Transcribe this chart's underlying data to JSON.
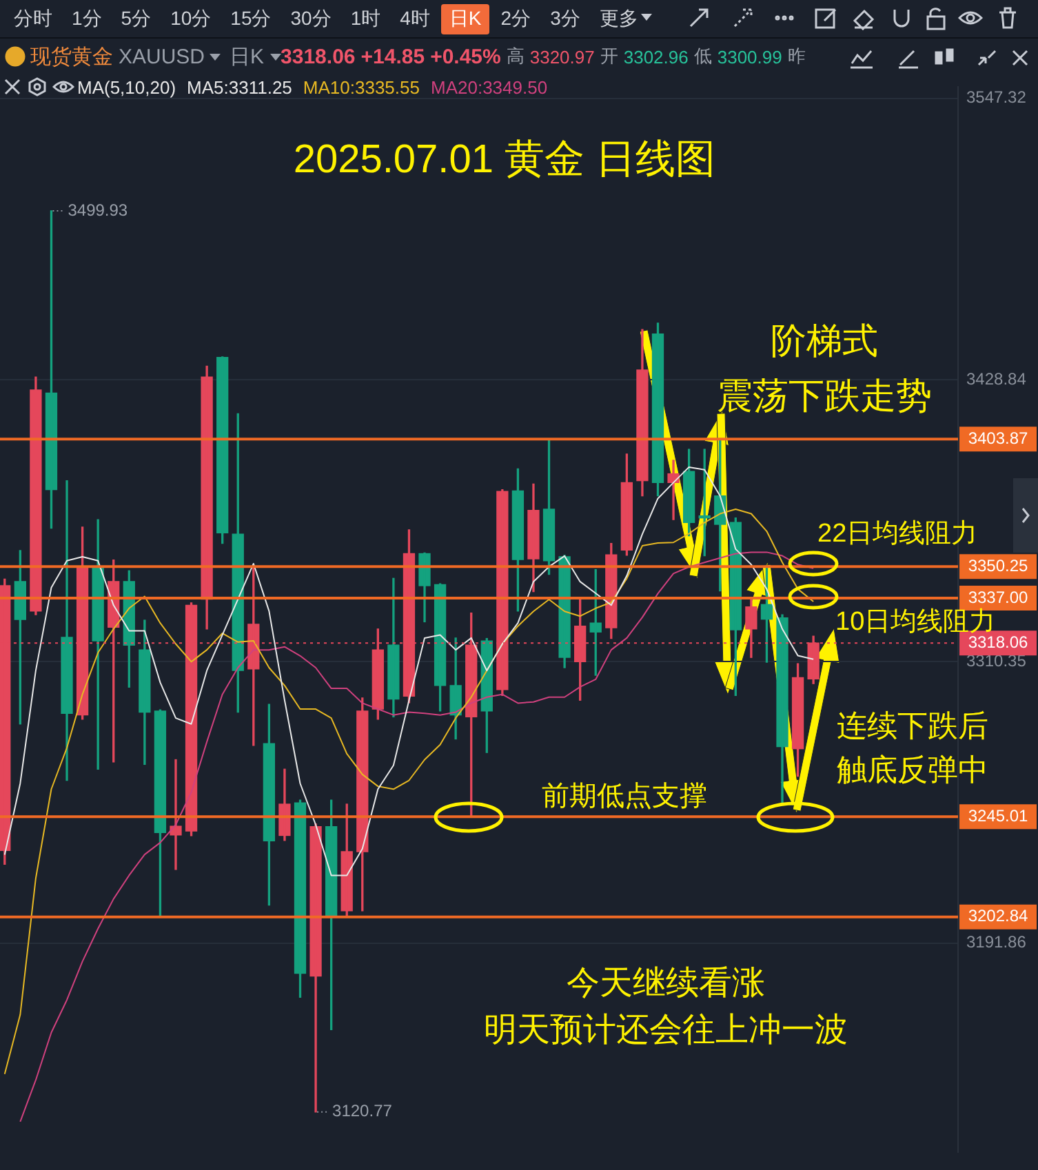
{
  "chart_data": {
    "type": "candlestick",
    "title": "2025.07.01 黄金 日线图",
    "subtitle": "现货黄金 XAUUSD 日K 3318.06 +14.85 +0.45% 高 3320.97 开 3302.96 低 3300.99 昨",
    "categories": [
      null,
      null,
      null,
      null,
      null,
      null,
      null,
      null,
      null,
      null,
      null,
      null,
      null,
      null,
      null,
      null,
      null,
      null,
      null,
      null,
      null,
      null,
      null,
      null,
      null,
      null,
      null,
      null,
      null,
      null,
      null,
      null,
      null,
      null,
      null,
      null,
      null,
      null,
      null,
      null,
      null,
      null,
      null,
      null,
      null,
      null,
      null,
      null,
      null,
      null,
      null,
      null,
      null
    ],
    "ohlc": [
      [
        3230.8,
        3345,
        3225,
        3342.2
      ],
      [
        3344,
        3357,
        3284,
        3328
      ],
      [
        3331.5,
        3430,
        3330,
        3424.6
      ],
      [
        3423.3,
        3499.93,
        3366.4,
        3382.6
      ],
      [
        3320.5,
        3386.4,
        3260.3,
        3288.5
      ],
      [
        3287.8,
        3366.9,
        3286,
        3349.7
      ],
      [
        3349.7,
        3370,
        3265,
        3319
      ],
      [
        3324.7,
        3353,
        3268,
        3344
      ],
      [
        3344,
        3348.5,
        3299.5,
        3317.2
      ],
      [
        3315.2,
        3327.7,
        3267,
        3289
      ],
      [
        3289.5,
        3290,
        3202.9,
        3238.3
      ],
      [
        3237.3,
        3269,
        3222.8,
        3241
      ],
      [
        3239,
        3335,
        3237,
        3334
      ],
      [
        3336.5,
        3434.6,
        3324,
        3430
      ],
      [
        3438.3,
        3438.5,
        3360,
        3364.4
      ],
      [
        3363.9,
        3414.6,
        3289,
        3306.5
      ],
      [
        3307.2,
        3350.2,
        3275,
        3326
      ],
      [
        3275.8,
        3292.3,
        3207.8,
        3234.8
      ],
      [
        3237.1,
        3265,
        3235,
        3250.3
      ],
      [
        3250.8,
        3252,
        3169,
        3179.1
      ],
      [
        3177.9,
        3242,
        3120.77,
        3240.8
      ],
      [
        3240.8,
        3252,
        3155.4,
        3202.9
      ],
      [
        3205.4,
        3250.3,
        3203.4,
        3230.3
      ],
      [
        3230.3,
        3295,
        3205.4,
        3289.5
      ],
      [
        3290.3,
        3324,
        3286,
        3315.2
      ],
      [
        3317.2,
        3345.3,
        3287,
        3294.5
      ],
      [
        3295.7,
        3365.7,
        3293,
        3355.7
      ],
      [
        3355.7,
        3356,
        3327,
        3342.2
      ],
      [
        3342.7,
        3343,
        3289.5,
        3300.2
      ],
      [
        3300.2,
        3320.2,
        3277.7,
        3287.8
      ],
      [
        3287,
        3330.7,
        3245.01,
        3317.2
      ],
      [
        3319,
        3320,
        3272,
        3289.5
      ],
      [
        3298.5,
        3382.6,
        3296,
        3381.9
      ],
      [
        3382.1,
        3391.4,
        3331.5,
        3353.2
      ],
      [
        3353.5,
        3385,
        3339.7,
        3373.9
      ],
      [
        3374.4,
        3403.87,
        3347,
        3352.7
      ],
      [
        3354.4,
        3355,
        3307.7,
        3312
      ],
      [
        3310.2,
        3337,
        3294,
        3325.2
      ],
      [
        3326.5,
        3349,
        3304.5,
        3322.7
      ],
      [
        3324.5,
        3360,
        3320,
        3355.2
      ],
      [
        3357.2,
        3397.6,
        3355,
        3385.6
      ],
      [
        3386.4,
        3450,
        3380,
        3433
      ],
      [
        3448.1,
        3452.7,
        3380,
        3385.6
      ],
      [
        3385.6,
        3395,
        3370,
        3389.3
      ],
      [
        3390.3,
        3399.6,
        3363.2,
        3368.8
      ],
      [
        3371.6,
        3399.6,
        3354.8,
        3370.7
      ],
      [
        3380,
        3404,
        3340,
        3368
      ],
      [
        3368.8,
        3370.7,
        3296,
        3323.6
      ],
      [
        3324,
        3337,
        3312,
        3333.3
      ],
      [
        3334.3,
        3350.1,
        3310,
        3328.1
      ],
      [
        3328.7,
        3330,
        3250,
        3274.5
      ],
      [
        3273.6,
        3309.4,
        3262,
        3303.5
      ],
      [
        3302.96,
        3320.97,
        3300.99,
        3318.06
      ]
    ],
    "colors": [
      "#e5475b",
      "#14a27f",
      "#e5475b",
      "#14a27f",
      "#14a27f",
      "#e5475b",
      "#14a27f",
      "#e5475b",
      "#14a27f",
      "#14a27f",
      "#14a27f",
      "#e5475b",
      "#e5475b",
      "#e5475b",
      "#14a27f",
      "#14a27f",
      "#e5475b",
      "#14a27f",
      "#e5475b",
      "#14a27f",
      "#e5475b",
      "#14a27f",
      "#e5475b",
      "#e5475b",
      "#e5475b",
      "#14a27f",
      "#e5475b",
      "#14a27f",
      "#14a27f",
      "#14a27f",
      "#e5475b",
      "#14a27f",
      "#e5475b",
      "#14a27f",
      "#e5475b",
      "#14a27f",
      "#14a27f",
      "#e5475b",
      "#14a27f",
      "#e5475b",
      "#e5475b",
      "#e5475b",
      "#14a27f",
      "#e5475b",
      "#14a27f",
      "#14a27f",
      "#14a27f",
      "#14a27f",
      "#e5475b",
      "#14a27f",
      "#14a27f",
      "#e5475b",
      "#e5475b"
    ],
    "series": [
      {
        "name": "MA5:3311.25",
        "type": "line",
        "color": "#e8e8e8",
        "values": [
          3229,
          3259,
          3306.5,
          3341.4,
          3352.7,
          3354.4,
          3352.7,
          3334,
          3323.2,
          3323.2,
          3301.5,
          3286.5,
          3284,
          3306.5,
          3321.5,
          3336.5,
          3351.5,
          3331.5,
          3294,
          3259,
          3241.6,
          3220.3,
          3220.3,
          3231.5,
          3256.6,
          3266.6,
          3294,
          3320.2,
          3321.5,
          3315.2,
          3320.2,
          3306.5,
          3317.7,
          3326.5,
          3343.9,
          3350.2,
          3354.7,
          3343.9,
          3339,
          3334,
          3346.4,
          3363.9,
          3378.9,
          3385.6,
          3392.1,
          3391,
          3380,
          3357.6,
          3351.1,
          3340.8,
          3324,
          3312.8,
          3311.25
        ]
      },
      {
        "name": "MA10:3335.55",
        "type": "line",
        "color": "#e8b923",
        "values": [
          3136.7,
          3161.7,
          3219.1,
          3256.6,
          3274,
          3296.5,
          3314,
          3324,
          3332.7,
          3337.7,
          3326.5,
          3317.7,
          3310.2,
          3315.2,
          3322.2,
          3318.5,
          3319,
          3307.7,
          3300.2,
          3290.3,
          3290.3,
          3286.5,
          3271.5,
          3262.8,
          3257.8,
          3256.6,
          3260.3,
          3269,
          3275.3,
          3286.5,
          3295.3,
          3306.5,
          3317.7,
          3325.2,
          3331.4,
          3336.4,
          3331.4,
          3329.4,
          3332.7,
          3335.2,
          3345.2,
          3359,
          3360.2,
          3360.4,
          3364.1,
          3368.8,
          3372.5,
          3374.4,
          3372.5,
          3365.1,
          3352,
          3340.8,
          3335.55
        ]
      },
      {
        "name": "MA20:3349.50",
        "type": "line",
        "color": "#d0417e",
        "values": [
          null,
          3116.7,
          3134.2,
          3154.2,
          3167.9,
          3184.1,
          3197.9,
          3210.4,
          3220.3,
          3229.1,
          3234.1,
          3241.6,
          3255.3,
          3276.5,
          3296.5,
          3307.7,
          3315.2,
          3315.2,
          3316.5,
          3312.7,
          3307.7,
          3299,
          3299,
          3292.8,
          3290.3,
          3287.8,
          3289,
          3288.5,
          3287.8,
          3289,
          3292.8,
          3295.3,
          3296.5,
          3292.8,
          3293.3,
          3295.3,
          3295.3,
          3299.6,
          3302.8,
          3315.2,
          3320.2,
          3328.9,
          3338.9,
          3347.3,
          3350.1,
          3352,
          3353.9,
          3355.7,
          3356.3,
          3356.3,
          3354.8,
          3351.1,
          3349.5
        ]
      }
    ],
    "legend": "top",
    "legend_title": "MA(5,10,20)",
    "ylim": [
      3104,
      3552
    ],
    "yticks": [
      3547.32,
      3428.84,
      3310.35,
      3191.86
    ],
    "grid": "y",
    "tick_labels": "y",
    "ref_lines": [
      {
        "axis": "y",
        "value": 3403.87,
        "label": "3403.87",
        "color": "#f06a25"
      },
      {
        "axis": "y",
        "value": 3350.25,
        "label": "3350.25",
        "color": "#f06a25"
      },
      {
        "axis": "y",
        "value": 3337,
        "label": "3337.00",
        "color": "#f06a25"
      },
      {
        "axis": "y",
        "value": 3245.01,
        "label": "3245.01",
        "color": "#f06a25"
      },
      {
        "axis": "y",
        "value": 3202.84,
        "label": "3202.84",
        "color": "#f06a25"
      },
      {
        "axis": "y",
        "value": 3318.06,
        "label": "3318.06",
        "color": "#e5475b",
        "line_style": "dotted"
      }
    ],
    "annotations": [
      "3499.93",
      "3120.77",
      "阶梯式",
      "震荡下跌走势",
      "22日均线阻力",
      "10日均线阻力",
      "前期低点支撑",
      "连续下跌后",
      "触底反弹中",
      "今天继续看涨",
      "明天预计还会往上冲一波",
      "分时 1分 5分 10分 15分 30分 1时 4时 日K 2分 3分 更多"
    ]
  }
}
